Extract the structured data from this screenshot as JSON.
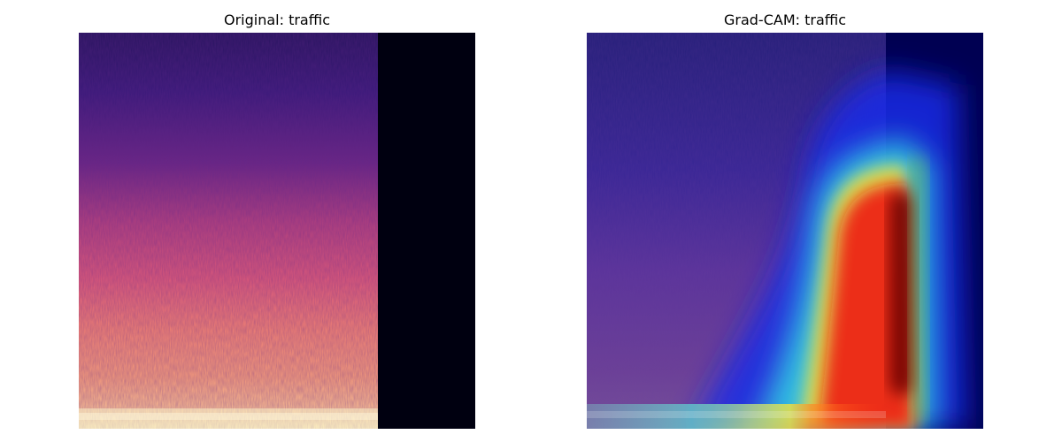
{
  "figure": {
    "panels": [
      {
        "title": "Original: traffic",
        "image": "spectrogram-magma"
      },
      {
        "title": "Grad-CAM: traffic",
        "image": "spectrogram-gradcam-jet-overlay"
      }
    ]
  },
  "colors": {
    "background": "#ffffff",
    "magma_dark": "#000010",
    "magma_purple": "#3b1a7a",
    "magma_pink": "#d9587a",
    "magma_peach": "#f9b98c",
    "magma_light": "#fbf3c7",
    "jet_blue": "#0000cc",
    "jet_cyan": "#33e3d8",
    "jet_yellow": "#ffe533",
    "jet_red": "#ee1111",
    "jet_darkred": "#6f0000",
    "jet_navy": "#000052"
  }
}
